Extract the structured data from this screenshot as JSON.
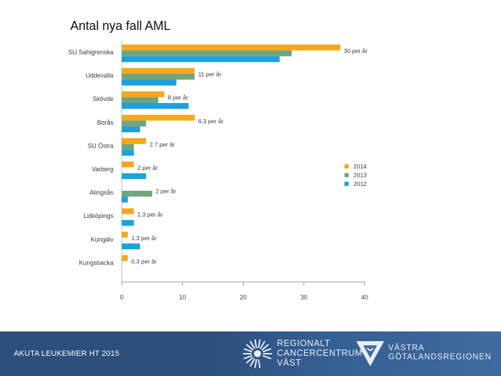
{
  "page": {
    "title": "Antal nya fall AML"
  },
  "chart_data": {
    "type": "bar",
    "orientation": "horizontal",
    "categories": [
      "SU Sahlgrenska",
      "Uddevalla",
      "Skövde",
      "Borås",
      "SU Östra",
      "Varberg",
      "Alingsås",
      "Lidköpings",
      "Kungälv",
      "Kungsbacka"
    ],
    "series": [
      {
        "name": "2014",
        "color": "#f4a81d",
        "values": [
          36,
          12,
          7,
          12,
          4,
          2,
          0,
          2,
          1,
          1
        ]
      },
      {
        "name": "2013",
        "color": "#6fa57f",
        "values": [
          28,
          12,
          6,
          4,
          2,
          0,
          5,
          0,
          0,
          0
        ]
      },
      {
        "name": "2012",
        "color": "#1ea0dd",
        "values": [
          26,
          9,
          11,
          3,
          2,
          4,
          1,
          2,
          3,
          0
        ]
      }
    ],
    "annotations": [
      "30 per år",
      "11 per år",
      "8 per år",
      "6.3 per år",
      "2.7 per år",
      "2 per år",
      "2 per år",
      "1.3 per år",
      "1.3 per år",
      "0.3 per år"
    ],
    "xlim": [
      0,
      40
    ],
    "xticks": [
      "0",
      "10",
      "20",
      "30",
      "40"
    ],
    "grid": false,
    "legend": "right"
  },
  "footer": {
    "course": "AKUTA LEUKEMIER HT 2015",
    "rcc_lines": [
      "REGIONALT",
      "CANCERCENTRUM",
      "VÄST"
    ],
    "vg_lines": [
      "VÄSTRA",
      "GÖTALANDSREGIONEN"
    ]
  }
}
